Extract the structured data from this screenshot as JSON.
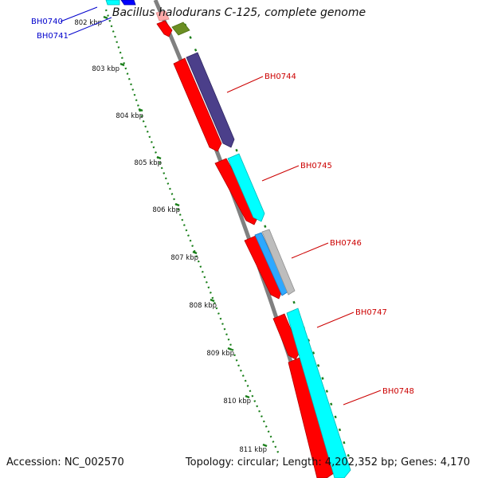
{
  "title": "Bacillus halodurans C-125, complete genome",
  "accession": "Accession: NC_002570",
  "summary": "Topology: circular; Length: 4,202,352 bp; Genes: 4,170",
  "colors": {
    "backbone": "#808080",
    "scale_ticks": "#1a7f1a",
    "gene_label_forward": "#cc0000",
    "gene_label_reverse": "#0000cc",
    "cds_red": "#ff0000",
    "cds_cyan": "#00ffff",
    "cds_purple": "#4b3f8a",
    "cds_blue_light": "#2ea8ff",
    "cds_gray": "#bdbdbd",
    "cds_olive": "#6b8e23",
    "cds_blue": "#0000ff"
  },
  "scale_labels": [
    "802 kbp",
    "803 kbp",
    "804 kbp",
    "805 kbp",
    "806 kbp",
    "807 kbp",
    "808 kbp",
    "809 kbp",
    "810 kbp",
    "811 kbp"
  ],
  "gene_labels": [
    {
      "text": "BH0740",
      "strand": "reverse"
    },
    {
      "text": "BH0741",
      "strand": "reverse"
    },
    {
      "text": "BH0744",
      "strand": "forward"
    },
    {
      "text": "BH0745",
      "strand": "forward"
    },
    {
      "text": "BH0746",
      "strand": "forward"
    },
    {
      "text": "BH0747",
      "strand": "forward"
    },
    {
      "text": "BH0748",
      "strand": "forward"
    }
  ]
}
